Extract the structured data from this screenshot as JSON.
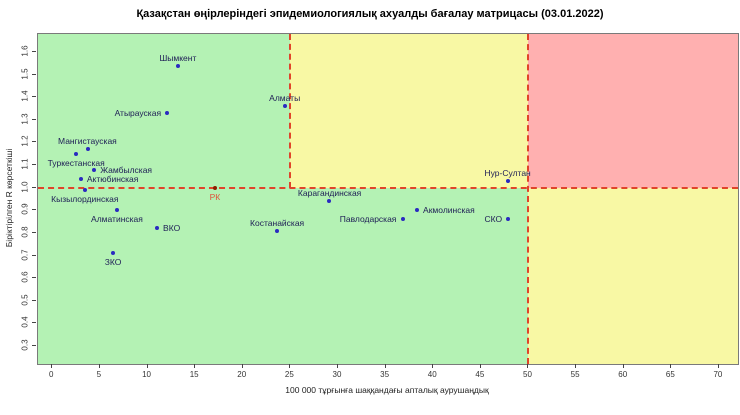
{
  "chart_data": {
    "type": "scatter",
    "title": "Қазақстан өңірлеріндегі эпидемиологиялық ахуалды бағалау матрицасы (03.01.2022)",
    "xlabel": "100 000 тұрғынға шаққандағы апталық аурушаңдық",
    "ylabel": "Біріктірілген R көрсеткіші",
    "xlim": [
      -1.5,
      72
    ],
    "ylim": [
      0.22,
      1.68
    ],
    "xticks": [
      0,
      5,
      10,
      15,
      20,
      25,
      30,
      35,
      40,
      45,
      50,
      55,
      60,
      65,
      70
    ],
    "yticks": [
      0.3,
      0.4,
      0.5,
      0.6,
      0.7,
      0.8,
      0.9,
      1.0,
      1.1,
      1.2,
      1.3,
      1.4,
      1.5,
      1.6
    ],
    "grid": false,
    "legend": "none",
    "colors": {
      "zone_green": "#b4f2b4",
      "zone_yellow": "#f8f8a4",
      "zone_red": "#ffb0b0",
      "threshold_line": "#e0442a",
      "point": "#2a2ac0",
      "point_rk": "#8b2000",
      "label": "#1d1d55",
      "label_rk": "#e0553a"
    },
    "regions": [
      {
        "name": "green-top-left",
        "color": "#b4f2b4",
        "x": [
          -1.5,
          25
        ],
        "y": [
          1.0,
          1.68
        ]
      },
      {
        "name": "yellow-top-middle",
        "color": "#f8f8a4",
        "x": [
          25,
          50
        ],
        "y": [
          1.0,
          1.68
        ]
      },
      {
        "name": "red-top-right",
        "color": "#ffb0b0",
        "x": [
          50,
          72
        ],
        "y": [
          1.0,
          1.68
        ]
      },
      {
        "name": "green-bottom",
        "color": "#b4f2b4",
        "x": [
          -1.5,
          50
        ],
        "y": [
          0.22,
          1.0
        ]
      },
      {
        "name": "yellow-bottom-right",
        "color": "#f8f8a4",
        "x": [
          50,
          72
        ],
        "y": [
          0.22,
          1.0
        ]
      }
    ],
    "reference_lines": [
      {
        "orientation": "horizontal",
        "value": 1.0,
        "span": [
          -1.5,
          72
        ]
      },
      {
        "orientation": "vertical",
        "value": 25,
        "span": [
          1.0,
          1.68
        ]
      },
      {
        "orientation": "vertical",
        "value": 50,
        "span": [
          0.22,
          1.68
        ]
      }
    ],
    "points": [
      {
        "label": "Шымкент",
        "x": 13.2,
        "y": 1.54,
        "label_pos": "above"
      },
      {
        "label": "Алматы",
        "x": 24.4,
        "y": 1.36,
        "label_pos": "above"
      },
      {
        "label": "Атырауская",
        "x": 12.0,
        "y": 1.33,
        "label_pos": "left"
      },
      {
        "label": "Мангистауская",
        "x": 3.7,
        "y": 1.17,
        "label_pos": "above"
      },
      {
        "label": "Туркестанская",
        "x": 2.5,
        "y": 1.15,
        "label_pos": "below"
      },
      {
        "label": "Жамбылская",
        "x": 4.4,
        "y": 1.08,
        "label_pos": "right"
      },
      {
        "label": "Актюбинская",
        "x": 3.0,
        "y": 1.04,
        "label_pos": "right"
      },
      {
        "label": "Кызылординская",
        "x": 3.4,
        "y": 0.99,
        "label_pos": "below"
      },
      {
        "label": "РК",
        "x": 17.1,
        "y": 1.0,
        "label_pos": "below",
        "special": "rk"
      },
      {
        "label": "Нур-Султан",
        "x": 47.8,
        "y": 1.03,
        "label_pos": "above"
      },
      {
        "label": "Карагандинская",
        "x": 29.1,
        "y": 0.94,
        "label_pos": "above"
      },
      {
        "label": "Акмолинская",
        "x": 38.3,
        "y": 0.9,
        "label_pos": "right"
      },
      {
        "label": "Павлодарская",
        "x": 36.8,
        "y": 0.86,
        "label_pos": "left"
      },
      {
        "label": "СКО",
        "x": 47.9,
        "y": 0.86,
        "label_pos": "left"
      },
      {
        "label": "Костанайская",
        "x": 23.6,
        "y": 0.81,
        "label_pos": "above"
      },
      {
        "label": "Алматинская",
        "x": 6.8,
        "y": 0.9,
        "label_pos": "below"
      },
      {
        "label": "ВКО",
        "x": 11.0,
        "y": 0.82,
        "label_pos": "right"
      },
      {
        "label": "ЗКО",
        "x": 6.4,
        "y": 0.71,
        "label_pos": "below"
      }
    ]
  }
}
